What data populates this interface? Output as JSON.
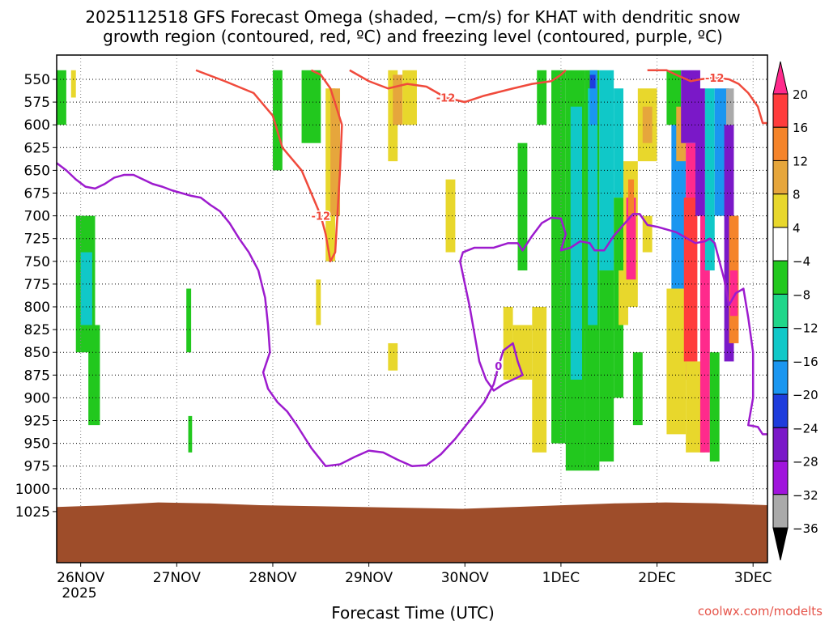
{
  "chart_data": {
    "type": "heatmap",
    "title_line1": "2025112518 GFS Forecast Omega (shaded, −cm/s) for KHAT with dendritic snow",
    "title_line2": "growth region (contoured, red, ºC) and freezing level (contoured, purple, ºC)",
    "xlabel": "Forecast Time (UTC)",
    "ylabel": "",
    "credit": "coolwx.com/modelts",
    "y_axis": {
      "scale": "pressure-hPa",
      "ticks": [
        "550",
        "575",
        "600",
        "625",
        "650",
        "675",
        "700",
        "725",
        "750",
        "775",
        "800",
        "825",
        "850",
        "875",
        "900",
        "925",
        "950",
        "975",
        "1000",
        "1025"
      ]
    },
    "x_axis": {
      "ticks": [
        "26NOV",
        "27NOV",
        "28NOV",
        "29NOV",
        "30NOV",
        "1DEC",
        "2DEC",
        "3DEC"
      ],
      "sub_label": "2025",
      "range_days": [
        -0.25,
        7.15
      ]
    },
    "colorbar": {
      "labels": [
        "20",
        "16",
        "12",
        "8",
        "4",
        "−4",
        "−8",
        "−12",
        "−16",
        "−20",
        "−24",
        "−28",
        "−32",
        "−36"
      ],
      "colors": [
        "#ff2a8c",
        "#ff3c3c",
        "#f5842a",
        "#e6a63c",
        "#e8d72c",
        "#ffffff",
        "#22c81e",
        "#20d68a",
        "#10c8c8",
        "#1a96f0",
        "#1e3cdc",
        "#7a18c8",
        "#a014dc",
        "#aaaaaa",
        "#000000"
      ]
    },
    "contours": [
      {
        "label": "-12",
        "color": "#f04a3c",
        "points": [
          [
            1.2,
            540
          ],
          [
            1.5,
            552
          ],
          [
            1.8,
            565
          ],
          [
            2.0,
            590
          ],
          [
            2.1,
            625
          ],
          [
            2.3,
            650
          ],
          [
            2.4,
            675
          ],
          [
            2.5,
            700
          ],
          [
            2.55,
            720
          ],
          [
            2.6,
            750
          ],
          [
            2.65,
            740
          ],
          [
            2.7,
            650
          ],
          [
            2.72,
            600
          ],
          [
            2.6,
            560
          ],
          [
            2.5,
            545
          ],
          [
            2.4,
            540
          ]
        ]
      },
      {
        "label": "-12",
        "color": "#f04a3c",
        "points": [
          [
            2.8,
            540
          ],
          [
            3.0,
            552
          ],
          [
            3.2,
            560
          ],
          [
            3.4,
            555
          ],
          [
            3.6,
            558
          ],
          [
            3.8,
            570
          ],
          [
            4.0,
            575
          ],
          [
            4.2,
            568
          ],
          [
            4.5,
            560
          ],
          [
            4.7,
            555
          ],
          [
            4.9,
            552
          ],
          [
            5.0,
            545
          ],
          [
            5.05,
            540
          ]
        ]
      },
      {
        "label": "0",
        "color": "#9d1bce",
        "points": [
          [
            -0.25,
            642
          ],
          [
            -0.15,
            650
          ],
          [
            -0.05,
            660
          ],
          [
            0.05,
            668
          ],
          [
            0.15,
            670
          ],
          [
            0.25,
            665
          ],
          [
            0.35,
            658
          ],
          [
            0.45,
            655
          ],
          [
            0.55,
            655
          ],
          [
            0.65,
            660
          ],
          [
            0.75,
            665
          ],
          [
            0.85,
            668
          ],
          [
            0.95,
            672
          ],
          [
            1.05,
            675
          ],
          [
            1.15,
            678
          ],
          [
            1.25,
            680
          ],
          [
            1.35,
            688
          ],
          [
            1.45,
            695
          ],
          [
            1.55,
            708
          ],
          [
            1.65,
            725
          ],
          [
            1.75,
            740
          ],
          [
            1.85,
            760
          ],
          [
            1.92,
            790
          ],
          [
            1.95,
            820
          ],
          [
            1.97,
            850
          ],
          [
            1.9,
            872
          ],
          [
            1.95,
            890
          ],
          [
            2.05,
            905
          ],
          [
            2.15,
            915
          ],
          [
            2.25,
            930
          ],
          [
            2.4,
            955
          ],
          [
            2.55,
            975
          ],
          [
            2.7,
            973
          ],
          [
            2.85,
            965
          ],
          [
            3.0,
            958
          ],
          [
            3.15,
            960
          ],
          [
            3.3,
            968
          ],
          [
            3.45,
            975
          ],
          [
            3.6,
            974
          ],
          [
            3.75,
            962
          ],
          [
            3.9,
            945
          ],
          [
            4.05,
            925
          ],
          [
            4.2,
            905
          ],
          [
            4.3,
            885
          ],
          [
            4.35,
            865
          ],
          [
            4.4,
            848
          ],
          [
            4.5,
            840
          ],
          [
            4.55,
            860
          ],
          [
            4.6,
            875
          ],
          [
            4.5,
            880
          ],
          [
            4.4,
            885
          ],
          [
            4.3,
            892
          ],
          [
            4.22,
            880
          ],
          [
            4.15,
            860
          ],
          [
            4.1,
            830
          ],
          [
            4.05,
            800
          ],
          [
            4.0,
            775
          ],
          [
            3.95,
            750
          ],
          [
            3.98,
            740
          ],
          [
            4.1,
            735
          ],
          [
            4.3,
            735
          ],
          [
            4.45,
            730
          ],
          [
            4.55,
            730
          ],
          [
            4.6,
            738
          ],
          [
            4.7,
            722
          ],
          [
            4.8,
            708
          ],
          [
            4.9,
            702
          ],
          [
            5.0,
            703
          ],
          [
            5.05,
            720
          ],
          [
            5.0,
            738
          ],
          [
            5.1,
            735
          ],
          [
            5.2,
            728
          ],
          [
            5.3,
            730
          ],
          [
            5.35,
            738
          ],
          [
            5.45,
            738
          ],
          [
            5.55,
            722
          ],
          [
            5.65,
            710
          ],
          [
            5.75,
            698
          ],
          [
            5.82,
            698
          ],
          [
            5.9,
            710
          ],
          [
            6.0,
            712
          ],
          [
            6.1,
            715
          ],
          [
            6.2,
            718
          ],
          [
            6.3,
            724
          ],
          [
            6.4,
            730
          ],
          [
            6.5,
            728
          ],
          [
            6.55,
            725
          ],
          [
            6.6,
            730
          ],
          [
            6.7,
            770
          ],
          [
            6.75,
            798
          ],
          [
            6.82,
            785
          ],
          [
            6.9,
            780
          ],
          [
            6.95,
            812
          ],
          [
            7.0,
            850
          ],
          [
            7.0,
            900
          ],
          [
            6.95,
            930
          ],
          [
            7.05,
            932
          ],
          [
            7.1,
            940
          ],
          [
            7.15,
            940
          ]
        ]
      },
      {
        "label": "-12",
        "color": "#f04a3c",
        "points": [
          [
            5.9,
            540
          ],
          [
            6.1,
            540
          ],
          [
            6.2,
            545
          ],
          [
            6.35,
            552
          ],
          [
            6.45,
            550
          ],
          [
            6.6,
            548
          ],
          [
            6.75,
            550
          ],
          [
            6.85,
            555
          ],
          [
            6.95,
            565
          ],
          [
            7.05,
            580
          ],
          [
            7.1,
            598
          ],
          [
            7.15,
            598
          ]
        ]
      }
    ],
    "omega_patches": [
      {
        "x0": -0.25,
        "x1": -0.15,
        "p0": 540,
        "p1": 600,
        "class": "#22c81e"
      },
      {
        "x0": -0.1,
        "x1": -0.05,
        "p0": 540,
        "p1": 570,
        "class": "#e8d72c"
      },
      {
        "x0": -0.05,
        "x1": 0.15,
        "p0": 700,
        "p1": 850,
        "class": "#22c81e"
      },
      {
        "x0": 0.0,
        "x1": 0.12,
        "p0": 740,
        "p1": 820,
        "class": "#10c8c8"
      },
      {
        "x0": 0.08,
        "x1": 0.2,
        "p0": 820,
        "p1": 930,
        "class": "#22c81e"
      },
      {
        "x0": 1.1,
        "x1": 1.15,
        "p0": 780,
        "p1": 850,
        "class": "#22c81e"
      },
      {
        "x0": 1.12,
        "x1": 1.16,
        "p0": 920,
        "p1": 960,
        "class": "#22c81e"
      },
      {
        "x0": 2.0,
        "x1": 2.1,
        "p0": 540,
        "p1": 650,
        "class": "#22c81e"
      },
      {
        "x0": 2.3,
        "x1": 2.5,
        "p0": 540,
        "p1": 620,
        "class": "#22c81e"
      },
      {
        "x0": 2.55,
        "x1": 2.65,
        "p0": 560,
        "p1": 750,
        "class": "#e8d72c"
      },
      {
        "x0": 2.6,
        "x1": 2.7,
        "p0": 560,
        "p1": 700,
        "class": "#e6a63c"
      },
      {
        "x0": 2.45,
        "x1": 2.5,
        "p0": 770,
        "p1": 820,
        "class": "#e8d72c"
      },
      {
        "x0": 3.2,
        "x1": 3.3,
        "p0": 540,
        "p1": 640,
        "class": "#e8d72c"
      },
      {
        "x0": 3.25,
        "x1": 3.35,
        "p0": 545,
        "p1": 600,
        "class": "#e6a63c"
      },
      {
        "x0": 3.35,
        "x1": 3.5,
        "p0": 540,
        "p1": 600,
        "class": "#e8d72c"
      },
      {
        "x0": 3.2,
        "x1": 3.3,
        "p0": 840,
        "p1": 870,
        "class": "#e8d72c"
      },
      {
        "x0": 3.8,
        "x1": 3.9,
        "p0": 660,
        "p1": 740,
        "class": "#e8d72c"
      },
      {
        "x0": 4.4,
        "x1": 4.5,
        "p0": 800,
        "p1": 880,
        "class": "#e8d72c"
      },
      {
        "x0": 4.5,
        "x1": 4.7,
        "p0": 820,
        "p1": 880,
        "class": "#e8d72c"
      },
      {
        "x0": 4.7,
        "x1": 4.85,
        "p0": 800,
        "p1": 960,
        "class": "#e8d72c"
      },
      {
        "x0": 4.55,
        "x1": 4.65,
        "p0": 620,
        "p1": 760,
        "class": "#22c81e"
      },
      {
        "x0": 4.75,
        "x1": 4.85,
        "p0": 540,
        "p1": 600,
        "class": "#22c81e"
      },
      {
        "x0": 4.9,
        "x1": 5.05,
        "p0": 540,
        "p1": 950,
        "class": "#22c81e"
      },
      {
        "x0": 5.05,
        "x1": 5.25,
        "p0": 540,
        "p1": 980,
        "class": "#22c81e"
      },
      {
        "x0": 5.1,
        "x1": 5.22,
        "p0": 580,
        "p1": 880,
        "class": "#10c8c8"
      },
      {
        "x0": 5.25,
        "x1": 5.4,
        "p0": 540,
        "p1": 980,
        "class": "#22c81e"
      },
      {
        "x0": 5.28,
        "x1": 5.38,
        "p0": 560,
        "p1": 820,
        "class": "#10c8c8"
      },
      {
        "x0": 5.3,
        "x1": 5.38,
        "p0": 540,
        "p1": 600,
        "class": "#1a96f0"
      },
      {
        "x0": 5.3,
        "x1": 5.36,
        "p0": 545,
        "p1": 560,
        "class": "#1e3cdc"
      },
      {
        "x0": 5.4,
        "x1": 5.55,
        "p0": 540,
        "p1": 760,
        "class": "#10c8c8"
      },
      {
        "x0": 5.4,
        "x1": 5.55,
        "p0": 760,
        "p1": 970,
        "class": "#22c81e"
      },
      {
        "x0": 5.55,
        "x1": 5.65,
        "p0": 560,
        "p1": 680,
        "class": "#10c8c8"
      },
      {
        "x0": 5.55,
        "x1": 5.65,
        "p0": 680,
        "p1": 900,
        "class": "#22c81e"
      },
      {
        "x0": 5.6,
        "x1": 5.7,
        "p0": 760,
        "p1": 820,
        "class": "#e8d72c"
      },
      {
        "x0": 5.65,
        "x1": 5.8,
        "p0": 640,
        "p1": 800,
        "class": "#e8d72c"
      },
      {
        "x0": 5.68,
        "x1": 5.78,
        "p0": 680,
        "p1": 770,
        "class": "#ff2a8c"
      },
      {
        "x0": 5.7,
        "x1": 5.76,
        "p0": 660,
        "p1": 700,
        "class": "#f5842a"
      },
      {
        "x0": 5.75,
        "x1": 5.85,
        "p0": 850,
        "p1": 930,
        "class": "#22c81e"
      },
      {
        "x0": 5.8,
        "x1": 6.0,
        "p0": 560,
        "p1": 640,
        "class": "#e8d72c"
      },
      {
        "x0": 5.85,
        "x1": 5.95,
        "p0": 580,
        "p1": 620,
        "class": "#e6a63c"
      },
      {
        "x0": 5.85,
        "x1": 5.95,
        "p0": 700,
        "p1": 740,
        "class": "#e8d72c"
      },
      {
        "x0": 6.1,
        "x1": 6.25,
        "p0": 540,
        "p1": 600,
        "class": "#22c81e"
      },
      {
        "x0": 6.15,
        "x1": 6.3,
        "p0": 600,
        "p1": 780,
        "class": "#1a96f0"
      },
      {
        "x0": 6.1,
        "x1": 6.3,
        "p0": 780,
        "p1": 940,
        "class": "#e8d72c"
      },
      {
        "x0": 6.2,
        "x1": 6.3,
        "p0": 580,
        "p1": 640,
        "class": "#e6a63c"
      },
      {
        "x0": 6.25,
        "x1": 6.45,
        "p0": 540,
        "p1": 620,
        "class": "#7a18c8"
      },
      {
        "x0": 6.3,
        "x1": 6.4,
        "p0": 620,
        "p1": 880,
        "class": "#ff2a8c"
      },
      {
        "x0": 6.28,
        "x1": 6.42,
        "p0": 680,
        "p1": 860,
        "class": "#ff3c3c"
      },
      {
        "x0": 6.3,
        "x1": 6.5,
        "p0": 860,
        "p1": 960,
        "class": "#e8d72c"
      },
      {
        "x0": 6.4,
        "x1": 6.5,
        "p0": 560,
        "p1": 700,
        "class": "#7a18c8"
      },
      {
        "x0": 6.45,
        "x1": 6.55,
        "p0": 700,
        "p1": 960,
        "class": "#ff2a8c"
      },
      {
        "x0": 6.5,
        "x1": 6.6,
        "p0": 560,
        "p1": 760,
        "class": "#10c8c8"
      },
      {
        "x0": 6.55,
        "x1": 6.65,
        "p0": 850,
        "p1": 970,
        "class": "#22c81e"
      },
      {
        "x0": 6.6,
        "x1": 6.75,
        "p0": 560,
        "p1": 700,
        "class": "#1a96f0"
      },
      {
        "x0": 6.7,
        "x1": 6.8,
        "p0": 600,
        "p1": 860,
        "class": "#7a18c8"
      },
      {
        "x0": 6.72,
        "x1": 6.8,
        "p0": 560,
        "p1": 600,
        "class": "#aaaaaa"
      },
      {
        "x0": 6.75,
        "x1": 6.85,
        "p0": 700,
        "p1": 840,
        "class": "#f5842a"
      },
      {
        "x0": 6.76,
        "x1": 6.84,
        "p0": 760,
        "p1": 810,
        "class": "#ff2a8c"
      }
    ],
    "ground": {
      "color": "#9e4d2a",
      "top_hPa": [
        1020,
        1018,
        1015,
        1016,
        1018,
        1019,
        1020,
        1021,
        1022,
        1020,
        1018,
        1016,
        1015,
        1016,
        1018
      ]
    }
  }
}
